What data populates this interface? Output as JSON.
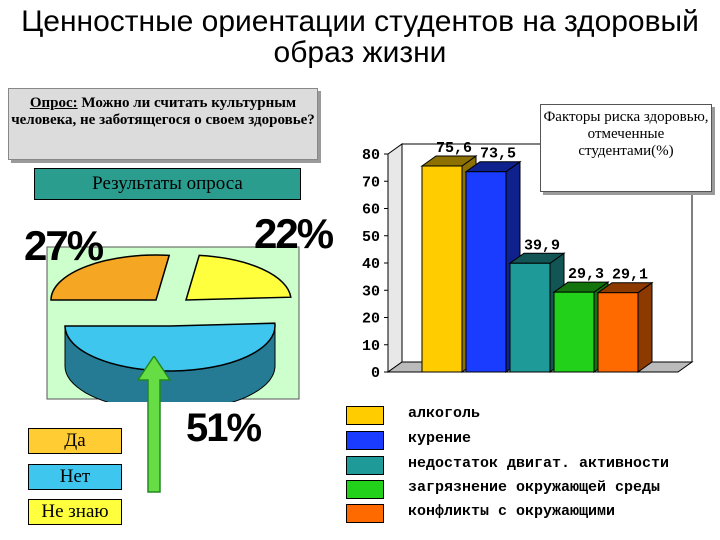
{
  "title": "Ценностные ориентации студентов на здоровый образ жизни",
  "question": {
    "lead": "Опрос:",
    "text": " Можно ли считать культурным человека, не заботящегося о своем здоровье?"
  },
  "results_label": "Результаты опроса",
  "chart_data": [
    {
      "type": "pie",
      "categories": [
        "Да",
        "Нет",
        "Не знаю"
      ],
      "values": [
        27,
        51,
        22
      ],
      "value_labels": [
        "27%",
        "51%",
        "22%"
      ],
      "colors": [
        "#f5a623",
        "#3ec6ee",
        "#ffff3d"
      ]
    },
    {
      "type": "bar",
      "title": "Факторы риска здоровью, отмеченные студентами(%)",
      "categories": [
        "алкоголь",
        "курение",
        "недостаток двигат. активности",
        "загрязнение окружающей среды",
        "конфликты с окружающими"
      ],
      "values": [
        75.6,
        73.5,
        39.9,
        29.3,
        29.1
      ],
      "value_labels": [
        "75,6",
        "73,5",
        "39,9",
        "29,3",
        "29,1"
      ],
      "colors": [
        "#ffcc00",
        "#1a3cff",
        "#1e9a98",
        "#22d21a",
        "#ff6a00"
      ],
      "ylim": [
        0,
        80
      ],
      "yticks": [
        "0",
        "10",
        "20",
        "30",
        "40",
        "50",
        "60",
        "70",
        "80"
      ],
      "legend": "bottom"
    }
  ],
  "pie_legend": {
    "yes": "Да",
    "no": "Нет",
    "unknown": "Не знаю"
  },
  "colors": {
    "pie_bg": "#ccffcc",
    "results_bg": "#2a9d8f",
    "arrow": "#66dd44"
  }
}
